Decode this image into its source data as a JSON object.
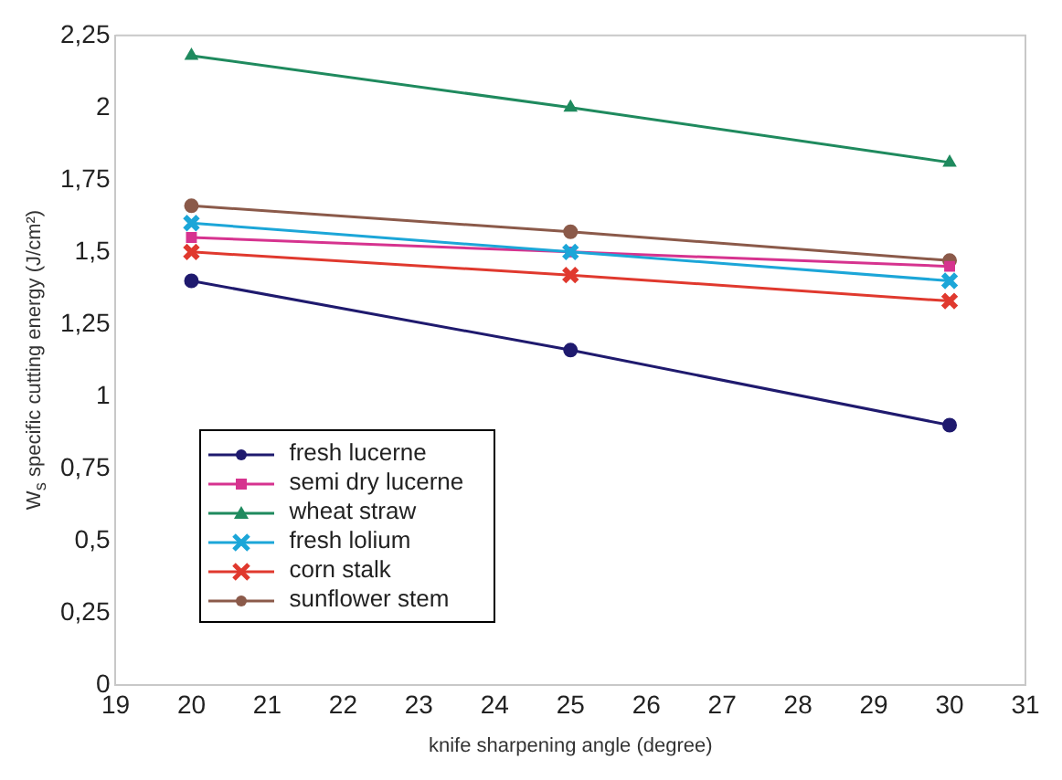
{
  "chart_data": {
    "type": "line",
    "xlabel": "knife sharpening angle (degree)",
    "ylabel": "W$_{s}$ specific cutting energy (J/cm²)",
    "x": [
      20,
      25,
      30
    ],
    "series": [
      {
        "name": "fresh lucerne",
        "color": "#1f1a6e",
        "marker": "circle",
        "values": [
          1.4,
          1.16,
          0.9
        ]
      },
      {
        "name": "semi dry lucerne",
        "color": "#d6338f",
        "marker": "square",
        "values": [
          1.55,
          1.5,
          1.45
        ]
      },
      {
        "name": "wheat straw",
        "color": "#1f8a5e",
        "marker": "triangle",
        "values": [
          2.18,
          2.0,
          1.81
        ]
      },
      {
        "name": "fresh lolium",
        "color": "#1ca6d8",
        "marker": "cross",
        "values": [
          1.6,
          1.5,
          1.4
        ]
      },
      {
        "name": "corn stalk",
        "color": "#e0392e",
        "marker": "cross",
        "values": [
          1.5,
          1.42,
          1.33
        ]
      },
      {
        "name": "sunflower stem",
        "color": "#8b5a4a",
        "marker": "circle",
        "values": [
          1.66,
          1.57,
          1.47
        ]
      }
    ],
    "xlim": [
      19,
      31
    ],
    "xticks": [
      19,
      20,
      21,
      22,
      23,
      24,
      25,
      26,
      27,
      28,
      29,
      30,
      31
    ],
    "ylim": [
      0,
      2.25
    ],
    "yticks": [
      {
        "value": 0,
        "label": "0"
      },
      {
        "value": 0.25,
        "label": "0,25"
      },
      {
        "value": 0.5,
        "label": "0,5"
      },
      {
        "value": 0.75,
        "label": "0,75"
      },
      {
        "value": 1,
        "label": "1"
      },
      {
        "value": 1.25,
        "label": "1,25"
      },
      {
        "value": 1.5,
        "label": "1,5"
      },
      {
        "value": 1.75,
        "label": "1,75"
      },
      {
        "value": 2,
        "label": "2"
      },
      {
        "value": 2.25,
        "label": "2,25"
      }
    ],
    "grid": false,
    "legend": "bottom left",
    "line_style": "solid"
  }
}
